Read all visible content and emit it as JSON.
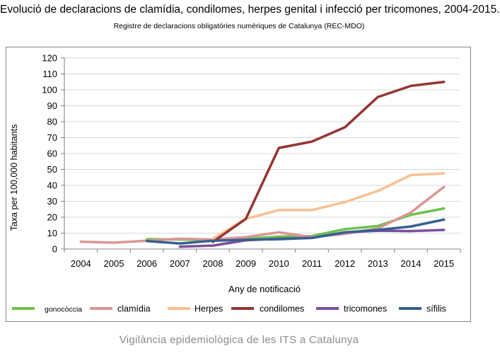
{
  "header": {
    "title": "Evolució de declaracions de clamídia, condilomes, herpes genital i infecció per tricomones, 2004-2015.",
    "subtitle": "Registre de declaracions obligatòries numèriques de Catalunya (REC-MDO)"
  },
  "footer": {
    "text": "Vigilància epidemiològica de les ITS a Catalunya"
  },
  "chart_data": {
    "type": "line",
    "title": "Evolució de declaracions de clamídia, condilomes, herpes genital i infecció per tricomones, 2004-2015.",
    "subtitle": "Registre de declaracions obligatòries numèriques de Catalunya (REC-MDO)",
    "xlabel": "Any de notificació",
    "ylabel": "Taxa per 100,000 habitants",
    "x": [
      "2004",
      "2005",
      "2006",
      "2007",
      "2008",
      "2009",
      "2010",
      "2011",
      "2012",
      "2013",
      "2014",
      "2015"
    ],
    "ylim": [
      0,
      120
    ],
    "yticks": [
      0,
      10,
      20,
      30,
      40,
      50,
      60,
      70,
      80,
      90,
      100,
      110,
      120
    ],
    "grid": true,
    "legend_position": "bottom",
    "series": [
      {
        "name": "gonocòccia",
        "color": "#6cc24a",
        "values": [
          null,
          null,
          6.2,
          6.0,
          5.6,
          6.5,
          7.8,
          8.2,
          12.5,
          14.5,
          21.5,
          25.5
        ]
      },
      {
        "name": "clamídia",
        "color": "#d99694",
        "values": [
          4.6,
          4.0,
          5.2,
          6.5,
          6.0,
          7.5,
          10.5,
          7.5,
          9.5,
          13.0,
          23.0,
          39.0
        ]
      },
      {
        "name": "Herpes",
        "color": "#fac090",
        "values": [
          null,
          null,
          null,
          null,
          6.5,
          19.0,
          24.5,
          24.5,
          29.5,
          36.5,
          46.5,
          47.5
        ]
      },
      {
        "name": "condilomes",
        "color": "#943634",
        "values": [
          null,
          null,
          null,
          null,
          4.5,
          19.0,
          63.5,
          67.5,
          76.5,
          95.5,
          102.5,
          105.0
        ]
      },
      {
        "name": "tricomones",
        "color": "#7b4f9d",
        "values": [
          null,
          null,
          null,
          1.5,
          2.2,
          5.5,
          6.5,
          7.0,
          10.5,
          11.5,
          11.3,
          12.0
        ]
      },
      {
        "name": "sífilis",
        "color": "#376092",
        "values": [
          null,
          null,
          5.0,
          3.5,
          5.2,
          5.8,
          6.2,
          7.0,
          10.5,
          12.0,
          14.2,
          18.5
        ]
      }
    ]
  }
}
